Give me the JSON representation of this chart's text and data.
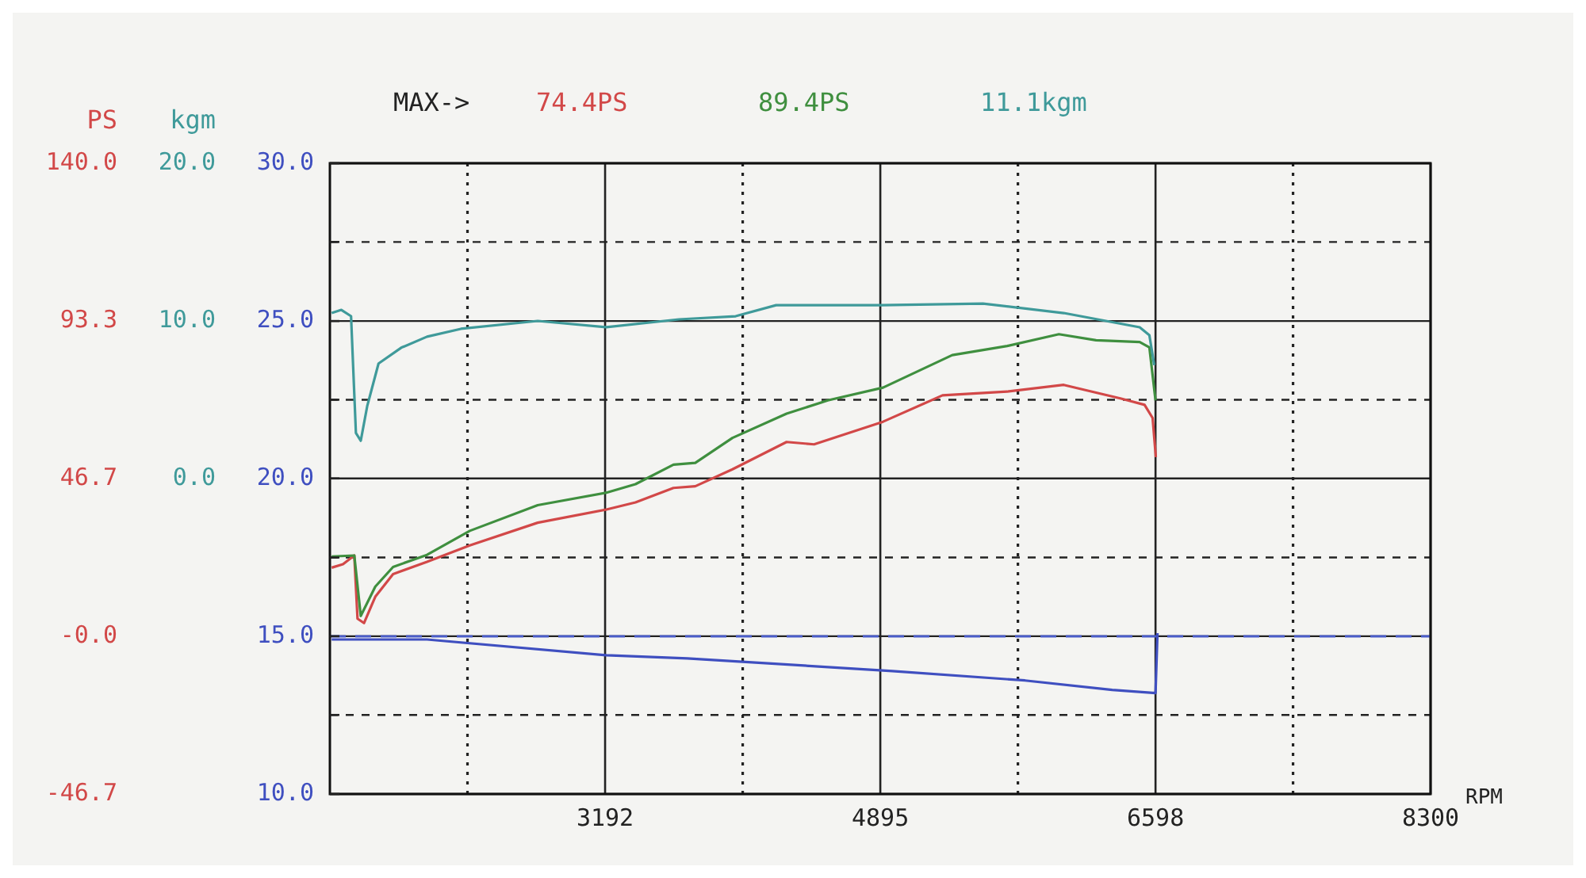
{
  "chart_data": {
    "type": "line",
    "xlabel": "RPM",
    "ylabel": "PS",
    "y2label": "kgm",
    "annotations": [
      "MAX->"
    ],
    "legend": "top",
    "grid": true,
    "xlim": [
      1489,
      8300
    ],
    "xticks": [
      {
        "value": 2340.5,
        "label": null
      },
      3192,
      {
        "value": 4043.5,
        "label": null
      },
      4895,
      {
        "value": 5746.5,
        "label": null
      },
      6598,
      {
        "value": 7449,
        "label": null
      },
      8300
    ],
    "ylim": [
      -46.7,
      140
    ],
    "yticks": [
      {
        "value": 140,
        "label": "140.0"
      },
      {
        "value": 116.7,
        "label": null
      },
      {
        "value": 93.3,
        "label": "93.3"
      },
      {
        "value": 70,
        "label": null
      },
      {
        "value": 46.7,
        "label": "46.7"
      },
      {
        "value": 23.3,
        "label": null
      },
      {
        "value": 0,
        "label": "-0.0"
      },
      {
        "value": -23.3,
        "label": null
      },
      {
        "value": -46.7,
        "label": "-46.7"
      }
    ],
    "y2lim": [
      -20,
      20
    ],
    "y2ticks": [
      {
        "value": 20,
        "label": "20.0"
      },
      {
        "value": 10,
        "label": "10.0"
      },
      {
        "value": 0,
        "label": "0.0"
      }
    ],
    "y3lim": [
      10,
      30
    ],
    "y3ticks": [
      {
        "value": 30,
        "label": "30.0"
      },
      {
        "value": 25,
        "label": "25.0"
      },
      {
        "value": 20,
        "label": "20.0"
      },
      {
        "value": 15,
        "label": "15.0"
      },
      {
        "value": 10,
        "label": "10.0"
      }
    ],
    "ref_lines": [
      {
        "axis": "y3",
        "value": 15,
        "color": "#4a5cc8",
        "line_style": "dashed"
      }
    ],
    "series": [
      {
        "name": "74.4PS",
        "color": "#d24848",
        "x": [
          1500,
          1570,
          1640,
          1660,
          1700,
          1770,
          1880,
          2090,
          2355,
          2775,
          3200,
          3380,
          3615,
          3750,
          3980,
          4315,
          4485,
          4912,
          5280,
          5680,
          6030,
          6380,
          6530,
          6580,
          6600
        ],
        "values": [
          20.3,
          21.3,
          23.9,
          5.2,
          3.9,
          11.7,
          18.4,
          22,
          26.9,
          33.6,
          37.5,
          39.6,
          43.9,
          44.4,
          49.4,
          57.5,
          56.8,
          63.5,
          71.3,
          72.4,
          74.4,
          70.4,
          68.5,
          64.6,
          53
        ]
      },
      {
        "name": "89.4PS",
        "color": "#3f8f3f",
        "x": [
          1500,
          1640,
          1680,
          1770,
          1880,
          2090,
          2355,
          2775,
          3200,
          3380,
          3615,
          3750,
          3980,
          4315,
          4570,
          4912,
          5340,
          5680,
          6000,
          6230,
          6500,
          6560,
          6598
        ],
        "values": [
          23.6,
          23.9,
          6,
          14.7,
          20.5,
          24.1,
          31.2,
          38.8,
          42.5,
          45,
          50.8,
          51.3,
          58.7,
          65.9,
          69.8,
          73.6,
          83.2,
          85.9,
          89.4,
          87.6,
          87.1,
          85.5,
          69.8
        ]
      },
      {
        "name": "11.1kgm",
        "color": "#3f9a9a",
        "axis": "y2",
        "x": [
          1500,
          1560,
          1620,
          1650,
          1680,
          1720,
          1790,
          1930,
          2090,
          2300,
          2775,
          3200,
          3650,
          4000,
          4250,
          4900,
          5530,
          6030,
          6500,
          6560,
          6590
        ],
        "values": [
          10.5,
          10.7,
          10.3,
          2.9,
          2.4,
          4.6,
          7.3,
          8.3,
          9,
          9.5,
          10,
          9.6,
          10.1,
          10.3,
          11,
          11,
          11.1,
          10.5,
          9.6,
          9.1,
          7.2
        ]
      },
      {
        "color": "#3f4fc0",
        "axis": "y3",
        "x": [
          1500,
          2090,
          3200,
          3700,
          4970,
          5790,
          6330,
          6598,
          6610
        ],
        "values": [
          14.9,
          14.9,
          14.4,
          14.3,
          13.9,
          13.6,
          13.3,
          13.2,
          15.1
        ]
      }
    ]
  }
}
